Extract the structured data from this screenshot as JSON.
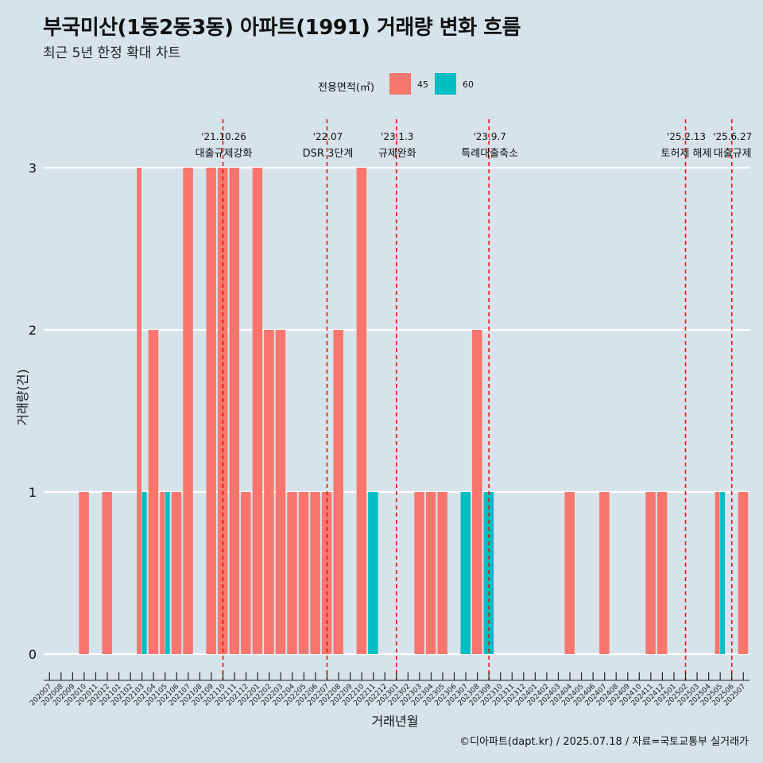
{
  "title": "부국미산(1동2동3동) 아파트(1991) 거래량 변화 흐름",
  "subtitle": "최근 5년 한정 확대 차트",
  "caption": "©디아파트(dapt.kr) / 2025.07.18 / 자료=국토교통부 실거래가",
  "legend": {
    "title": "전용면적(㎡)",
    "items": [
      {
        "label": "45",
        "color": "#f8766d"
      },
      {
        "label": "60",
        "color": "#00bfc4"
      }
    ]
  },
  "chart_data": {
    "type": "bar",
    "xlabel": "거래년월",
    "ylabel": "거래량(건)",
    "ylim": [
      0,
      3
    ],
    "yticks": [
      0,
      1,
      2,
      3
    ],
    "categories": [
      "202007",
      "202008",
      "202009",
      "202010",
      "202011",
      "202012",
      "202101",
      "202102",
      "202103",
      "202104",
      "202105",
      "202106",
      "202107",
      "202108",
      "202109",
      "202110",
      "202111",
      "202112",
      "202201",
      "202202",
      "202203",
      "202204",
      "202205",
      "202206",
      "202207",
      "202208",
      "202209",
      "202210",
      "202211",
      "202212",
      "202301",
      "202302",
      "202303",
      "202304",
      "202305",
      "202306",
      "202307",
      "202308",
      "202309",
      "202310",
      "202311",
      "202312",
      "202401",
      "202402",
      "202403",
      "202404",
      "202405",
      "202406",
      "202407",
      "202408",
      "202409",
      "202410",
      "202411",
      "202412",
      "202501",
      "202502",
      "202503",
      "202504",
      "202505",
      "202506",
      "202507"
    ],
    "series": [
      {
        "name": "45",
        "color": "#f8766d",
        "values": [
          0,
          0,
          0,
          1,
          0,
          1,
          0,
          0,
          3,
          2,
          1,
          1,
          3,
          0,
          3,
          3,
          3,
          1,
          3,
          2,
          2,
          1,
          1,
          1,
          1,
          2,
          0,
          3,
          0,
          0,
          0,
          0,
          1,
          1,
          1,
          0,
          0,
          2,
          0,
          0,
          0,
          0,
          0,
          0,
          0,
          1,
          0,
          0,
          1,
          0,
          0,
          0,
          1,
          1,
          0,
          0,
          0,
          0,
          1,
          0,
          1
        ]
      },
      {
        "name": "60",
        "color": "#00bfc4",
        "values": [
          0,
          0,
          0,
          0,
          0,
          0,
          0,
          0,
          1,
          0,
          1,
          0,
          0,
          0,
          0,
          0,
          0,
          0,
          0,
          0,
          0,
          0,
          0,
          0,
          0,
          0,
          0,
          0,
          1,
          0,
          0,
          0,
          0,
          0,
          0,
          0,
          1,
          0,
          1,
          0,
          0,
          0,
          0,
          0,
          0,
          0,
          0,
          0,
          0,
          0,
          0,
          0,
          0,
          0,
          0,
          0,
          0,
          0,
          1,
          0,
          0
        ]
      }
    ],
    "events": [
      {
        "date": "'21.10.26",
        "label": "대출규제강화",
        "x": "202110"
      },
      {
        "date": "'22.07",
        "label": "DSR 3단계",
        "x": "202207"
      },
      {
        "date": "'23.1.3",
        "label": "규제완화",
        "x": "202301"
      },
      {
        "date": "'23.9.7",
        "label": "특례대출축소",
        "x": "202309"
      },
      {
        "date": "'25.2.13",
        "label": "토허제 해제",
        "x": "202502"
      },
      {
        "date": "'25.6.27",
        "label": "대출규제",
        "x": "202506"
      }
    ]
  }
}
